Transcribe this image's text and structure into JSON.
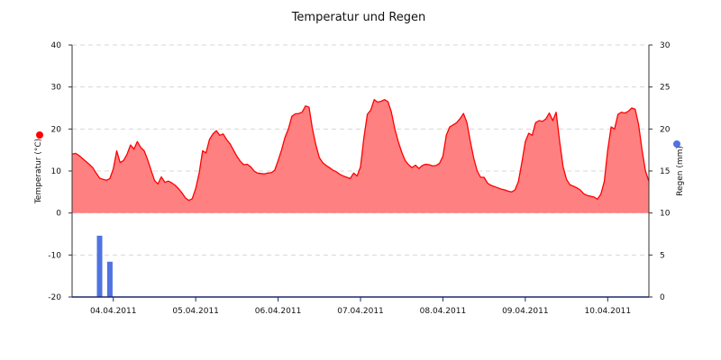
{
  "chart_data": {
    "type": "area",
    "title": "Temperatur und Regen",
    "grid": true,
    "y_left": {
      "label": "Temperatur (°C)",
      "range": [
        -20,
        40
      ],
      "ticks": [
        "40",
        "30",
        "20",
        "10",
        "0",
        "-10",
        "-20"
      ],
      "marker_color": "#ff0000"
    },
    "y_right": {
      "label": "Regen (mm)",
      "range": [
        0,
        30
      ],
      "ticks": [
        "30",
        "25",
        "20",
        "15",
        "10",
        "5",
        "0"
      ],
      "marker_color": "#4f73e0"
    },
    "x_axis": {
      "start": "2011-04-03T12:00",
      "end": "2011-04-10T12:00",
      "tick_labels": [
        "04.04.2011",
        "05.04.2011",
        "06.04.2011",
        "07.04.2011",
        "08.04.2011",
        "09.04.2011",
        "10.04.2011"
      ]
    },
    "series": [
      {
        "name": "Temperatur",
        "kind": "area",
        "color": "#ff0000",
        "fill": "#ff8080",
        "points": [
          [
            "2011-04-03T12:00",
            14
          ],
          [
            "2011-04-03T13:00",
            14.2
          ],
          [
            "2011-04-03T14:00",
            13.7
          ],
          [
            "2011-04-03T15:00",
            13
          ],
          [
            "2011-04-03T16:00",
            12.3
          ],
          [
            "2011-04-03T17:00",
            11.6
          ],
          [
            "2011-04-03T18:00",
            10.8
          ],
          [
            "2011-04-03T19:00",
            9.5
          ],
          [
            "2011-04-03T20:00",
            8.3
          ],
          [
            "2011-04-03T21:00",
            8
          ],
          [
            "2011-04-03T22:00",
            7.8
          ],
          [
            "2011-04-03T23:00",
            8.2
          ],
          [
            "2011-04-04T00:00",
            10.5
          ],
          [
            "2011-04-04T01:00",
            14.8
          ],
          [
            "2011-04-04T02:00",
            12
          ],
          [
            "2011-04-04T03:00",
            12.5
          ],
          [
            "2011-04-04T04:00",
            14
          ],
          [
            "2011-04-04T05:00",
            16.2
          ],
          [
            "2011-04-04T06:00",
            15.2
          ],
          [
            "2011-04-04T07:00",
            17
          ],
          [
            "2011-04-04T08:00",
            15.6
          ],
          [
            "2011-04-04T09:00",
            14.8
          ],
          [
            "2011-04-04T10:00",
            12.7
          ],
          [
            "2011-04-04T11:00",
            10.2
          ],
          [
            "2011-04-04T12:00",
            7.8
          ],
          [
            "2011-04-04T13:00",
            6.9
          ],
          [
            "2011-04-04T14:00",
            8.6
          ],
          [
            "2011-04-04T15:00",
            7.3
          ],
          [
            "2011-04-04T16:00",
            7.6
          ],
          [
            "2011-04-04T17:00",
            7.2
          ],
          [
            "2011-04-04T18:00",
            6.6
          ],
          [
            "2011-04-04T19:00",
            5.8
          ],
          [
            "2011-04-04T20:00",
            4.8
          ],
          [
            "2011-04-04T21:00",
            3.6
          ],
          [
            "2011-04-04T22:00",
            3
          ],
          [
            "2011-04-04T23:00",
            3.4
          ],
          [
            "2011-04-05T00:00",
            5.8
          ],
          [
            "2011-04-05T01:00",
            9.5
          ],
          [
            "2011-04-05T02:00",
            14.8
          ],
          [
            "2011-04-05T03:00",
            14.3
          ],
          [
            "2011-04-05T04:00",
            17.5
          ],
          [
            "2011-04-05T05:00",
            18.8
          ],
          [
            "2011-04-05T06:00",
            19.6
          ],
          [
            "2011-04-05T07:00",
            18.5
          ],
          [
            "2011-04-05T08:00",
            18.8
          ],
          [
            "2011-04-05T09:00",
            17.5
          ],
          [
            "2011-04-05T10:00",
            16.5
          ],
          [
            "2011-04-05T11:00",
            15
          ],
          [
            "2011-04-05T12:00",
            13.5
          ],
          [
            "2011-04-05T13:00",
            12.3
          ],
          [
            "2011-04-05T14:00",
            11.5
          ],
          [
            "2011-04-05T15:00",
            11.6
          ],
          [
            "2011-04-05T16:00",
            11
          ],
          [
            "2011-04-05T17:00",
            10
          ],
          [
            "2011-04-05T18:00",
            9.5
          ],
          [
            "2011-04-05T19:00",
            9.4
          ],
          [
            "2011-04-05T20:00",
            9.3
          ],
          [
            "2011-04-05T21:00",
            9.5
          ],
          [
            "2011-04-05T22:00",
            9.6
          ],
          [
            "2011-04-05T23:00",
            10.2
          ],
          [
            "2011-04-06T00:00",
            12.5
          ],
          [
            "2011-04-06T01:00",
            15
          ],
          [
            "2011-04-06T02:00",
            18
          ],
          [
            "2011-04-06T03:00",
            20
          ],
          [
            "2011-04-06T04:00",
            23
          ],
          [
            "2011-04-06T05:00",
            23.6
          ],
          [
            "2011-04-06T06:00",
            23.7
          ],
          [
            "2011-04-06T07:00",
            24
          ],
          [
            "2011-04-06T08:00",
            25.5
          ],
          [
            "2011-04-06T09:00",
            25.2
          ],
          [
            "2011-04-06T10:00",
            20
          ],
          [
            "2011-04-06T11:00",
            16.2
          ],
          [
            "2011-04-06T12:00",
            13.2
          ],
          [
            "2011-04-06T13:00",
            12
          ],
          [
            "2011-04-06T14:00",
            11.3
          ],
          [
            "2011-04-06T15:00",
            10.8
          ],
          [
            "2011-04-06T16:00",
            10.2
          ],
          [
            "2011-04-06T17:00",
            9.8
          ],
          [
            "2011-04-06T18:00",
            9.2
          ],
          [
            "2011-04-06T19:00",
            8.8
          ],
          [
            "2011-04-06T20:00",
            8.5
          ],
          [
            "2011-04-06T21:00",
            8.2
          ],
          [
            "2011-04-06T22:00",
            9.5
          ],
          [
            "2011-04-06T23:00",
            8.8
          ],
          [
            "2011-04-07T00:00",
            11
          ],
          [
            "2011-04-07T01:00",
            18
          ],
          [
            "2011-04-07T02:00",
            23.5
          ],
          [
            "2011-04-07T03:00",
            24.5
          ],
          [
            "2011-04-07T04:00",
            27
          ],
          [
            "2011-04-07T05:00",
            26.4
          ],
          [
            "2011-04-07T06:00",
            26.6
          ],
          [
            "2011-04-07T07:00",
            27
          ],
          [
            "2011-04-07T08:00",
            26.5
          ],
          [
            "2011-04-07T09:00",
            24
          ],
          [
            "2011-04-07T10:00",
            20
          ],
          [
            "2011-04-07T11:00",
            17
          ],
          [
            "2011-04-07T12:00",
            14.5
          ],
          [
            "2011-04-07T13:00",
            12.5
          ],
          [
            "2011-04-07T14:00",
            11.5
          ],
          [
            "2011-04-07T15:00",
            10.8
          ],
          [
            "2011-04-07T16:00",
            11.4
          ],
          [
            "2011-04-07T17:00",
            10.6
          ],
          [
            "2011-04-07T18:00",
            11.3
          ],
          [
            "2011-04-07T19:00",
            11.6
          ],
          [
            "2011-04-07T20:00",
            11.5
          ],
          [
            "2011-04-07T21:00",
            11.2
          ],
          [
            "2011-04-07T22:00",
            11.3
          ],
          [
            "2011-04-07T23:00",
            11.8
          ],
          [
            "2011-04-08T00:00",
            13.5
          ],
          [
            "2011-04-08T01:00",
            18.5
          ],
          [
            "2011-04-08T02:00",
            20.5
          ],
          [
            "2011-04-08T03:00",
            21
          ],
          [
            "2011-04-08T04:00",
            21.5
          ],
          [
            "2011-04-08T05:00",
            22.5
          ],
          [
            "2011-04-08T06:00",
            23.7
          ],
          [
            "2011-04-08T07:00",
            21.5
          ],
          [
            "2011-04-08T08:00",
            17
          ],
          [
            "2011-04-08T09:00",
            13
          ],
          [
            "2011-04-08T10:00",
            10
          ],
          [
            "2011-04-08T11:00",
            8.5
          ],
          [
            "2011-04-08T12:00",
            8.5
          ],
          [
            "2011-04-08T13:00",
            7.1
          ],
          [
            "2011-04-08T14:00",
            6.6
          ],
          [
            "2011-04-08T15:00",
            6.3
          ],
          [
            "2011-04-08T16:00",
            6
          ],
          [
            "2011-04-08T17:00",
            5.7
          ],
          [
            "2011-04-08T18:00",
            5.5
          ],
          [
            "2011-04-08T19:00",
            5.2
          ],
          [
            "2011-04-08T20:00",
            5
          ],
          [
            "2011-04-08T21:00",
            5.5
          ],
          [
            "2011-04-08T22:00",
            7.5
          ],
          [
            "2011-04-08T23:00",
            12
          ],
          [
            "2011-04-09T00:00",
            17
          ],
          [
            "2011-04-09T01:00",
            19
          ],
          [
            "2011-04-09T02:00",
            18.5
          ],
          [
            "2011-04-09T03:00",
            21.5
          ],
          [
            "2011-04-09T04:00",
            22
          ],
          [
            "2011-04-09T05:00",
            21.8
          ],
          [
            "2011-04-09T06:00",
            22.4
          ],
          [
            "2011-04-09T07:00",
            23.8
          ],
          [
            "2011-04-09T08:00",
            22
          ],
          [
            "2011-04-09T09:00",
            24
          ],
          [
            "2011-04-09T10:00",
            17
          ],
          [
            "2011-04-09T11:00",
            11
          ],
          [
            "2011-04-09T12:00",
            8
          ],
          [
            "2011-04-09T13:00",
            6.7
          ],
          [
            "2011-04-09T14:00",
            6.4
          ],
          [
            "2011-04-09T15:00",
            6
          ],
          [
            "2011-04-09T16:00",
            5.5
          ],
          [
            "2011-04-09T17:00",
            4.6
          ],
          [
            "2011-04-09T18:00",
            4.2
          ],
          [
            "2011-04-09T19:00",
            4
          ],
          [
            "2011-04-09T20:00",
            3.8
          ],
          [
            "2011-04-09T21:00",
            3.3
          ],
          [
            "2011-04-09T22:00",
            4.5
          ],
          [
            "2011-04-09T23:00",
            7.5
          ],
          [
            "2011-04-10T00:00",
            15
          ],
          [
            "2011-04-10T01:00",
            20.5
          ],
          [
            "2011-04-10T02:00",
            20
          ],
          [
            "2011-04-10T03:00",
            23.5
          ],
          [
            "2011-04-10T04:00",
            24
          ],
          [
            "2011-04-10T05:00",
            23.8
          ],
          [
            "2011-04-10T06:00",
            24.2
          ],
          [
            "2011-04-10T07:00",
            25
          ],
          [
            "2011-04-10T08:00",
            24.7
          ],
          [
            "2011-04-10T09:00",
            21
          ],
          [
            "2011-04-10T10:00",
            15
          ],
          [
            "2011-04-10T11:00",
            10
          ],
          [
            "2011-04-10T12:00",
            7.5
          ]
        ]
      },
      {
        "name": "Regen",
        "kind": "bar",
        "axis": "right",
        "color": "#4f73e0",
        "points": [
          [
            "2011-04-03T20:00",
            7.3
          ],
          [
            "2011-04-03T23:00",
            4.2
          ]
        ]
      }
    ]
  }
}
